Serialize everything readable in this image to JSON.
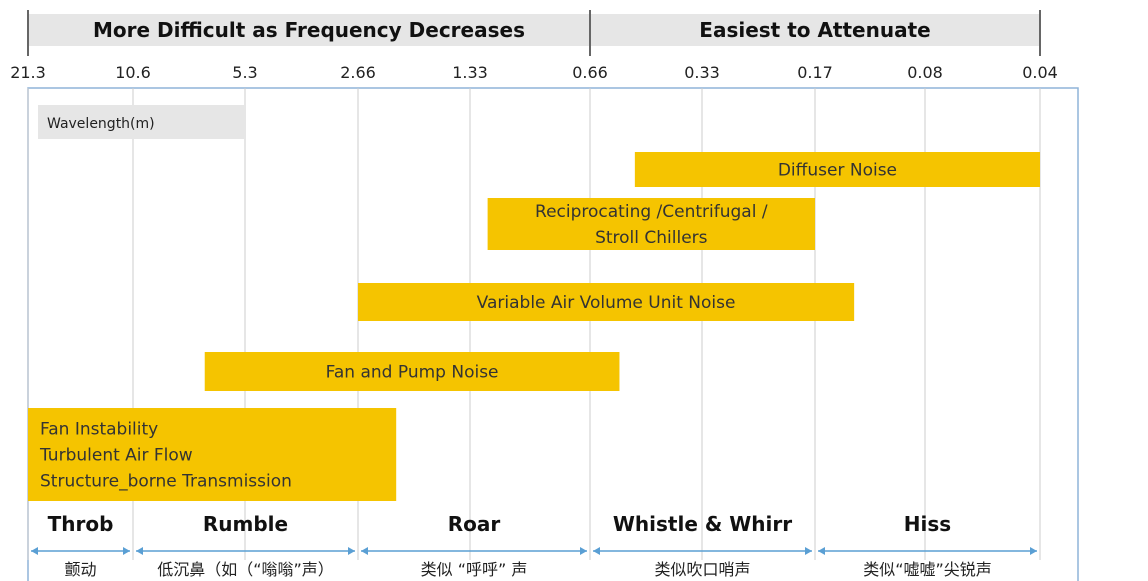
{
  "chart_data": {
    "type": "range-bar",
    "axis_label": "Wavelength(m)",
    "wavelength_ticks": [
      "21.3",
      "10.6",
      "5.3",
      "2.66",
      "1.33",
      "0.66",
      "0.33",
      "0.17",
      "0.08",
      "0.04"
    ],
    "header_bands": [
      {
        "label": "More Difficult as Frequency Decreases",
        "from": "21.3",
        "to": "0.66"
      },
      {
        "label": "Easiest to Attenuate",
        "from": "0.66",
        "to": "0.04"
      }
    ],
    "noise_sources": [
      {
        "lines": [
          "Diffuser Noise"
        ],
        "from": 0.5,
        "to": 0.04
      },
      {
        "lines": [
          "Reciprocating /Centrifugal /",
          "Stroll Chillers"
        ],
        "from": 1.2,
        "to": 0.17
      },
      {
        "lines": [
          "Variable Air Volume Unit Noise"
        ],
        "from": 2.66,
        "to": 0.13
      },
      {
        "lines": [
          "Fan and Pump Noise"
        ],
        "from": 6.8,
        "to": 0.55
      },
      {
        "lines": [
          "Fan Instability",
          "Turbulent Air Flow",
          "Structure_borne Transmission"
        ],
        "from": 21.3,
        "to": 2.1
      }
    ],
    "sound_categories": [
      {
        "label": "Throb",
        "chinese": "颤动",
        "from": "21.3",
        "to": "10.6"
      },
      {
        "label": "Rumble",
        "chinese": "低沉鼻（如（“嗡嗡”声）",
        "from": "10.6",
        "to": "2.66"
      },
      {
        "label": "Roar",
        "chinese": "类似 “呼呼” 声",
        "from": "2.66",
        "to": "0.66"
      },
      {
        "label": "Whistle & Whirr",
        "chinese": "类似吹口哨声",
        "from": "0.66",
        "to": "0.17"
      },
      {
        "label": "Hiss",
        "chinese": "类似“嘘嘘”尖锐声",
        "from": "0.17",
        "to": "0.04"
      }
    ],
    "colors": {
      "bar": "#f5c400",
      "header_band": "#e6e6e6",
      "grid": "#cccccc",
      "frame": "#8fb4d8",
      "arrow": "#5a9fd4"
    }
  }
}
